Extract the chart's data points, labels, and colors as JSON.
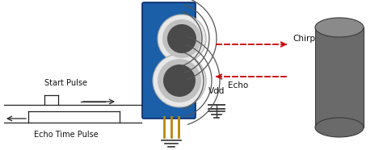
{
  "bg_color": "#ffffff",
  "board_color": "#1a5fa8",
  "board_edge_color": "#0a2a6a",
  "circle_outer_color": "#e8e8e8",
  "circle_mid_color": "#c0c0c0",
  "circle_inner_color": "#4a4a4a",
  "arc_color": "#555555",
  "chirp_color": "#cc0000",
  "echo_color": "#cc0000",
  "cyl_body_color": "#6a6a6a",
  "cyl_top_color": "#8a8a8a",
  "cyl_edge_color": "#3a3a3a",
  "wire_color": "#b8860b",
  "signal_color": "#222222",
  "text_color": "#111111",
  "chirp_label": "Chirp",
  "echo_label": "Echo",
  "vdd_label": "Vdd",
  "start_pulse_label": "Start Pulse",
  "echo_time_label": "Echo Time Pulse"
}
